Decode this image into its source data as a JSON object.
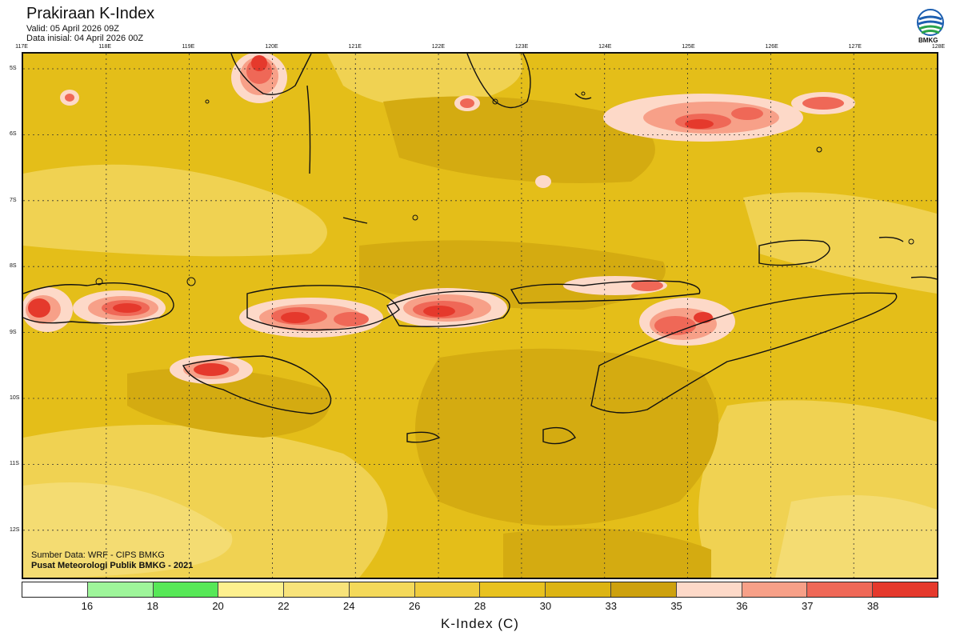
{
  "header": {
    "title": "Prakiraan K-Index",
    "valid": "Valid: 05 April 2026 09Z",
    "init": "Data inisial: 04 April 2026 00Z"
  },
  "logo": {
    "text": "BMKG",
    "icon": "bmkg-logo-icon"
  },
  "map": {
    "longitudes": [
      "117E",
      "118E",
      "119E",
      "120E",
      "121E",
      "122E",
      "123E",
      "124E",
      "125E",
      "126E",
      "127E",
      "128E"
    ],
    "latitudes": [
      "5S",
      "6S",
      "7S",
      "8S",
      "9S",
      "10S",
      "11S",
      "12S"
    ],
    "credit_source": "Sumber Data: WRF - CIPS BMKG",
    "credit_center": "Pusat Meteorologi Publik BMKG - 2021"
  },
  "legend": {
    "title": "K-Index (C)",
    "ticks": [
      "16",
      "18",
      "20",
      "22",
      "24",
      "26",
      "28",
      "30",
      "33",
      "35",
      "36",
      "37",
      "38"
    ],
    "colors": [
      "#ffffff",
      "#9ef59a",
      "#57e857",
      "#fdf08e",
      "#f8e37a",
      "#f4d95a",
      "#efcc3c",
      "#e8c21f",
      "#dcb413",
      "#cda10e",
      "#fdd9c8",
      "#f7a088",
      "#ef6857",
      "#e5392c"
    ]
  },
  "colors": {
    "background_field": "#e4be19",
    "high_field": "#d4ab11",
    "low_field": "#f4dc72",
    "coastline": "#111111"
  }
}
